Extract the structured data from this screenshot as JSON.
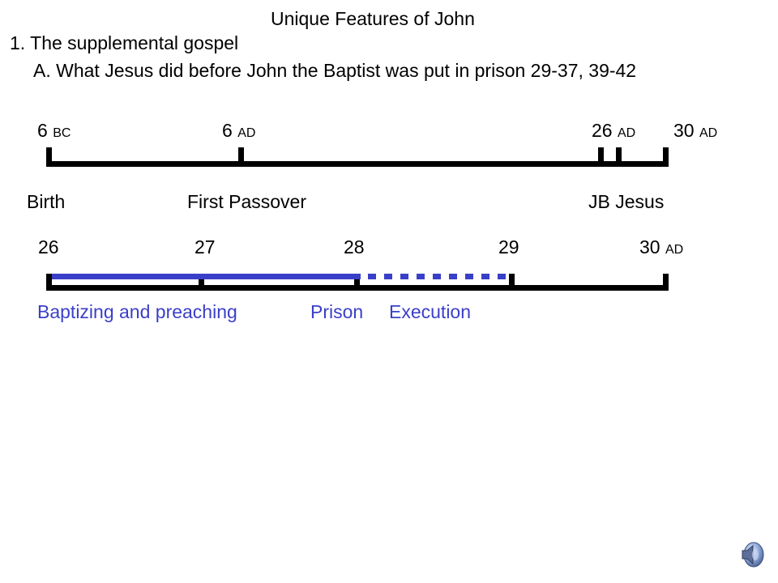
{
  "title": "Unique Features of John",
  "point1": "1. The supplemental gospel",
  "point1a": "A. What Jesus did before John the Baptist was put in prison  29-37, 39-42",
  "timeline1": {
    "dates": [
      {
        "num": "6",
        "era": "BC"
      },
      {
        "num": "6",
        "era": "AD"
      },
      {
        "num": "26",
        "era": "AD"
      },
      {
        "num": "30",
        "era": "AD"
      }
    ],
    "labels": [
      "Birth",
      "First Passover",
      "JB Jesus"
    ]
  },
  "timeline2": {
    "years": [
      "26",
      "27",
      "28",
      "29"
    ],
    "last_year": {
      "num": "30",
      "era": "AD"
    },
    "labels": [
      "Baptizing and preaching",
      "Prison",
      "Execution"
    ]
  },
  "colors": {
    "accent": "#3a3fc8",
    "line": "#000000"
  },
  "icons": {
    "audio": "speaker-icon"
  }
}
